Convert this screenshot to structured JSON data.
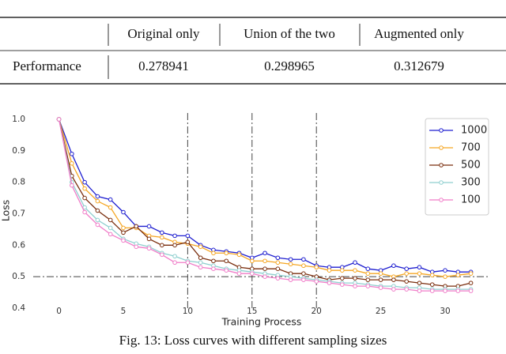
{
  "table": {
    "columns": [
      "Original only",
      "Union of the two",
      "Augmented only"
    ],
    "rows": [
      {
        "label": "Performance",
        "values": [
          0.278941,
          0.298965,
          0.312679
        ]
      }
    ]
  },
  "chart_data": {
    "type": "line",
    "x_label": "Training Process",
    "y_label": "Loss",
    "x": [
      0,
      1,
      2,
      3,
      4,
      5,
      6,
      7,
      8,
      9,
      10,
      11,
      12,
      13,
      14,
      15,
      16,
      17,
      18,
      19,
      20,
      21,
      22,
      23,
      24,
      25,
      26,
      27,
      28,
      29,
      30,
      31,
      32
    ],
    "series": [
      {
        "name": "1000",
        "color": "#1f1fd0",
        "values": [
          1.0,
          0.89,
          0.8,
          0.755,
          0.745,
          0.705,
          0.66,
          0.66,
          0.64,
          0.63,
          0.63,
          0.6,
          0.585,
          0.58,
          0.575,
          0.56,
          0.575,
          0.56,
          0.555,
          0.555,
          0.535,
          0.53,
          0.53,
          0.545,
          0.525,
          0.52,
          0.535,
          0.525,
          0.53,
          0.515,
          0.52,
          0.515,
          0.515
        ]
      },
      {
        "name": "700",
        "color": "#f5a623",
        "values": [
          1.0,
          0.86,
          0.78,
          0.74,
          0.72,
          0.655,
          0.655,
          0.63,
          0.625,
          0.61,
          0.605,
          0.595,
          0.575,
          0.575,
          0.57,
          0.55,
          0.55,
          0.545,
          0.54,
          0.535,
          0.53,
          0.52,
          0.52,
          0.52,
          0.51,
          0.51,
          0.5,
          0.51,
          0.51,
          0.505,
          0.5,
          0.505,
          0.51
        ]
      },
      {
        "name": "500",
        "color": "#7a2e0e",
        "values": [
          1.0,
          0.82,
          0.75,
          0.71,
          0.68,
          0.64,
          0.66,
          0.62,
          0.6,
          0.6,
          0.61,
          0.56,
          0.55,
          0.55,
          0.53,
          0.525,
          0.525,
          0.525,
          0.51,
          0.51,
          0.5,
          0.49,
          0.495,
          0.495,
          0.49,
          0.49,
          0.49,
          0.485,
          0.48,
          0.475,
          0.47,
          0.47,
          0.48
        ]
      },
      {
        "name": "300",
        "color": "#8fcfcf",
        "values": [
          1.0,
          0.8,
          0.72,
          0.68,
          0.655,
          0.62,
          0.605,
          0.595,
          0.575,
          0.565,
          0.55,
          0.545,
          0.535,
          0.525,
          0.52,
          0.515,
          0.51,
          0.505,
          0.5,
          0.495,
          0.49,
          0.485,
          0.48,
          0.48,
          0.475,
          0.47,
          0.47,
          0.465,
          0.465,
          0.46,
          0.46,
          0.46,
          0.46
        ]
      },
      {
        "name": "100",
        "color": "#f07cc8",
        "values": [
          1.0,
          0.79,
          0.705,
          0.665,
          0.635,
          0.615,
          0.595,
          0.59,
          0.57,
          0.545,
          0.545,
          0.53,
          0.525,
          0.52,
          0.51,
          0.51,
          0.5,
          0.495,
          0.49,
          0.49,
          0.485,
          0.48,
          0.475,
          0.47,
          0.47,
          0.465,
          0.46,
          0.46,
          0.455,
          0.455,
          0.455,
          0.455,
          0.455
        ]
      }
    ],
    "xlim": [
      -2,
      33.5
    ],
    "ylim": [
      0.4,
      1.02
    ],
    "xticks": [
      0,
      5,
      10,
      15,
      20,
      25,
      30
    ],
    "yticks": [
      0.4,
      0.5,
      0.6,
      0.7,
      0.8,
      0.9,
      {
        "value": 1.0,
        "label": "1.0"
      }
    ],
    "reference_x": [
      10,
      15,
      20
    ],
    "reference_y": [
      0.5
    ],
    "legend": "upper right"
  },
  "caption": "Fig. 13: Loss curves with different sampling sizes"
}
